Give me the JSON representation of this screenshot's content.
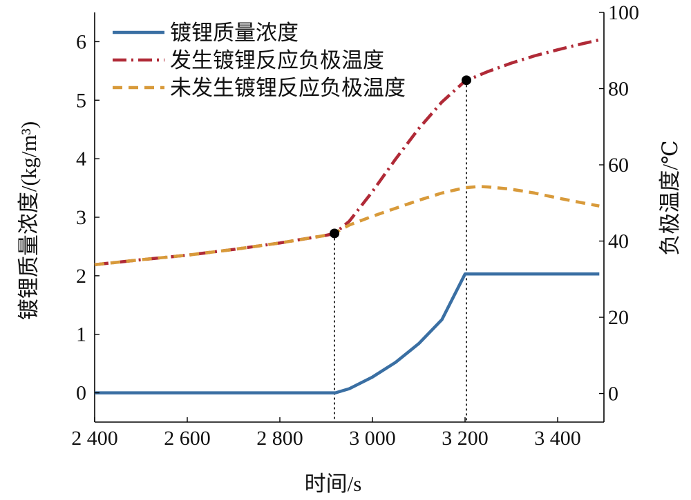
{
  "chart_data": {
    "type": "line",
    "xlabel": "时间/s",
    "ylabel_left": "镀锂质量浓度/(kg/m³)",
    "ylabel_right": "负极温度/℃",
    "x_ticks": [
      "2 400",
      "2 600",
      "2 800",
      "3 000",
      "3 200",
      "3 400"
    ],
    "x_tick_values": [
      2400,
      2600,
      2800,
      3000,
      3200,
      3400
    ],
    "y_left_ticks": [
      0,
      1,
      2,
      3,
      4,
      5,
      6
    ],
    "y_right_ticks": [
      0,
      20,
      40,
      60,
      80,
      100
    ],
    "xlim": [
      2400,
      3500
    ],
    "ylim_left": [
      -0.5,
      6.5
    ],
    "ylim_right": [
      -7.5,
      100
    ],
    "grid": false,
    "legend_position": "top-left",
    "series": [
      {
        "name": "镀锂质量浓度",
        "axis": "left",
        "color": "#3a6fa3",
        "style": "solid",
        "x": [
          2400,
          2500,
          2600,
          2700,
          2800,
          2900,
          2920,
          2950,
          3000,
          3050,
          3100,
          3150,
          3200,
          3300,
          3400,
          3490
        ],
        "y": [
          0,
          0,
          0,
          0,
          0,
          0,
          0,
          0.07,
          0.27,
          0.52,
          0.84,
          1.25,
          2.03,
          2.03,
          2.03,
          2.03
        ]
      },
      {
        "name": "发生镀锂反应负极温度",
        "axis": "right",
        "color": "#b02a37",
        "style": "dash-dot",
        "x": [
          2400,
          2500,
          2600,
          2700,
          2800,
          2900,
          2918,
          2950,
          3000,
          3050,
          3100,
          3150,
          3200,
          3250,
          3300,
          3350,
          3400,
          3450,
          3490
        ],
        "y": [
          33.8,
          35.1,
          36.3,
          37.8,
          39.5,
          41.5,
          42.0,
          45.2,
          53.0,
          61.5,
          69.5,
          76.5,
          82.0,
          84.5,
          86.7,
          88.6,
          90.2,
          91.7,
          92.8
        ]
      },
      {
        "name": "未发生镀锂反应负极温度",
        "axis": "right",
        "color": "#d89a3a",
        "style": "dashed",
        "x": [
          2400,
          2500,
          2600,
          2700,
          2800,
          2900,
          2920,
          2950,
          3000,
          3050,
          3100,
          3150,
          3200,
          3230,
          3250,
          3300,
          3350,
          3400,
          3450,
          3490
        ],
        "y": [
          33.8,
          35.1,
          36.3,
          37.8,
          39.5,
          41.5,
          42.2,
          44.2,
          46.5,
          48.6,
          50.7,
          52.6,
          54.0,
          54.3,
          54.2,
          53.6,
          52.6,
          51.3,
          50.1,
          49.2
        ]
      }
    ],
    "markers": [
      {
        "x": 2918,
        "y_right": 42.0
      },
      {
        "x": 3203,
        "y_right": 82.2
      }
    ],
    "reference_lines_x": [
      2918,
      3203
    ]
  }
}
